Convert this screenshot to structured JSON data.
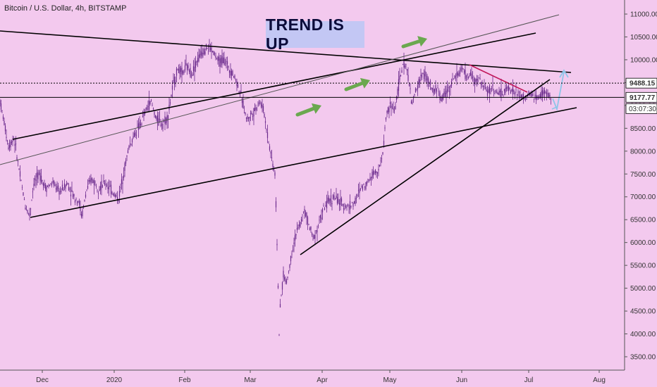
{
  "chart_title": "Bitcoin / U.S. Dollar, 4h, BITSTAMP",
  "banner_text": "TREND IS UP",
  "colors": {
    "background": "#f3c9ee",
    "candles": "#6a2a8c",
    "trendline": "#000000",
    "arrow": "#6aa84f",
    "projection": "#8ec5e8",
    "down_channel": "#c2185b"
  },
  "chart_data": {
    "type": "candlestick",
    "title": "Bitcoin / U.S. Dollar, 4h, BITSTAMP",
    "y_ticks": [
      3500,
      4000,
      4500,
      5000,
      5500,
      6000,
      6500,
      7000,
      7500,
      8000,
      8500,
      9000,
      9500,
      10000,
      10500,
      11000
    ],
    "x_ticks": [
      "Dec",
      "2020",
      "Feb",
      "Mar",
      "Apr",
      "May",
      "Jun",
      "Jul",
      "Aug"
    ],
    "price_labels": [
      {
        "label": "9488.15",
        "value": 9488.15,
        "style": "dotted"
      },
      {
        "label": "9177.77",
        "value": 9177.77,
        "style": "solid"
      }
    ],
    "countdown": "03:07:30",
    "price_path": [
      [
        0,
        9100
      ],
      [
        5,
        8700
      ],
      [
        12,
        8100
      ],
      [
        20,
        8300
      ],
      [
        28,
        7500
      ],
      [
        36,
        6800
      ],
      [
        42,
        6600
      ],
      [
        48,
        7300
      ],
      [
        56,
        7500
      ],
      [
        65,
        7200
      ],
      [
        75,
        7300
      ],
      [
        85,
        7100
      ],
      [
        95,
        7300
      ],
      [
        105,
        7000
      ],
      [
        112,
        6900
      ],
      [
        116,
        6550
      ],
      [
        122,
        7100
      ],
      [
        130,
        7400
      ],
      [
        140,
        7200
      ],
      [
        150,
        7300
      ],
      [
        160,
        7100
      ],
      [
        168,
        6950
      ],
      [
        175,
        7500
      ],
      [
        183,
        8100
      ],
      [
        192,
        8400
      ],
      [
        200,
        8600
      ],
      [
        207,
        8900
      ],
      [
        214,
        9100
      ],
      [
        222,
        8700
      ],
      [
        230,
        8600
      ],
      [
        238,
        8750
      ],
      [
        245,
        9400
      ],
      [
        252,
        9800
      ],
      [
        258,
        9700
      ],
      [
        265,
        9850
      ],
      [
        272,
        9700
      ],
      [
        280,
        10000
      ],
      [
        288,
        10200
      ],
      [
        296,
        10300
      ],
      [
        303,
        10150
      ],
      [
        310,
        9950
      ],
      [
        318,
        10000
      ],
      [
        326,
        9800
      ],
      [
        334,
        9600
      ],
      [
        342,
        9200
      ],
      [
        350,
        8700
      ],
      [
        356,
        8800
      ],
      [
        362,
        8900
      ],
      [
        368,
        9100
      ],
      [
        374,
        8900
      ],
      [
        380,
        8300
      ],
      [
        386,
        7800
      ],
      [
        390,
        7500
      ],
      [
        392,
        6600
      ],
      [
        394,
        5400
      ],
      [
        396,
        4000
      ],
      [
        398,
        4700
      ],
      [
        402,
        5300
      ],
      [
        406,
        5100
      ],
      [
        410,
        5400
      ],
      [
        414,
        5800
      ],
      [
        420,
        6200
      ],
      [
        426,
        6400
      ],
      [
        432,
        6700
      ],
      [
        438,
        6400
      ],
      [
        444,
        6100
      ],
      [
        450,
        6300
      ],
      [
        458,
        6700
      ],
      [
        466,
        6900
      ],
      [
        474,
        7000
      ],
      [
        480,
        6900
      ],
      [
        488,
        6800
      ],
      [
        496,
        6800
      ],
      [
        504,
        6900
      ],
      [
        512,
        7200
      ],
      [
        520,
        7300
      ],
      [
        528,
        7500
      ],
      [
        536,
        7600
      ],
      [
        542,
        7800
      ],
      [
        548,
        8800
      ],
      [
        554,
        9000
      ],
      [
        560,
        8900
      ],
      [
        566,
        9500
      ],
      [
        572,
        9900
      ],
      [
        578,
        9800
      ],
      [
        584,
        9000
      ],
      [
        590,
        9300
      ],
      [
        596,
        9600
      ],
      [
        602,
        9700
      ],
      [
        608,
        9500
      ],
      [
        614,
        9300
      ],
      [
        620,
        9400
      ],
      [
        626,
        9100
      ],
      [
        632,
        9300
      ],
      [
        638,
        9400
      ],
      [
        644,
        9600
      ],
      [
        650,
        9700
      ],
      [
        656,
        9800
      ],
      [
        662,
        9600
      ],
      [
        668,
        9700
      ],
      [
        674,
        9500
      ],
      [
        680,
        9600
      ],
      [
        686,
        9400
      ],
      [
        692,
        9300
      ],
      [
        698,
        9400
      ],
      [
        704,
        9300
      ],
      [
        710,
        9250
      ],
      [
        716,
        9300
      ],
      [
        722,
        9400
      ],
      [
        728,
        9300
      ],
      [
        734,
        9250
      ],
      [
        740,
        9200
      ],
      [
        746,
        9150
      ],
      [
        752,
        9250
      ],
      [
        758,
        9200
      ],
      [
        764,
        9150
      ],
      [
        770,
        9300
      ],
      [
        776,
        9250
      ],
      [
        782,
        9177
      ]
    ],
    "grid": false,
    "legend": "none"
  }
}
